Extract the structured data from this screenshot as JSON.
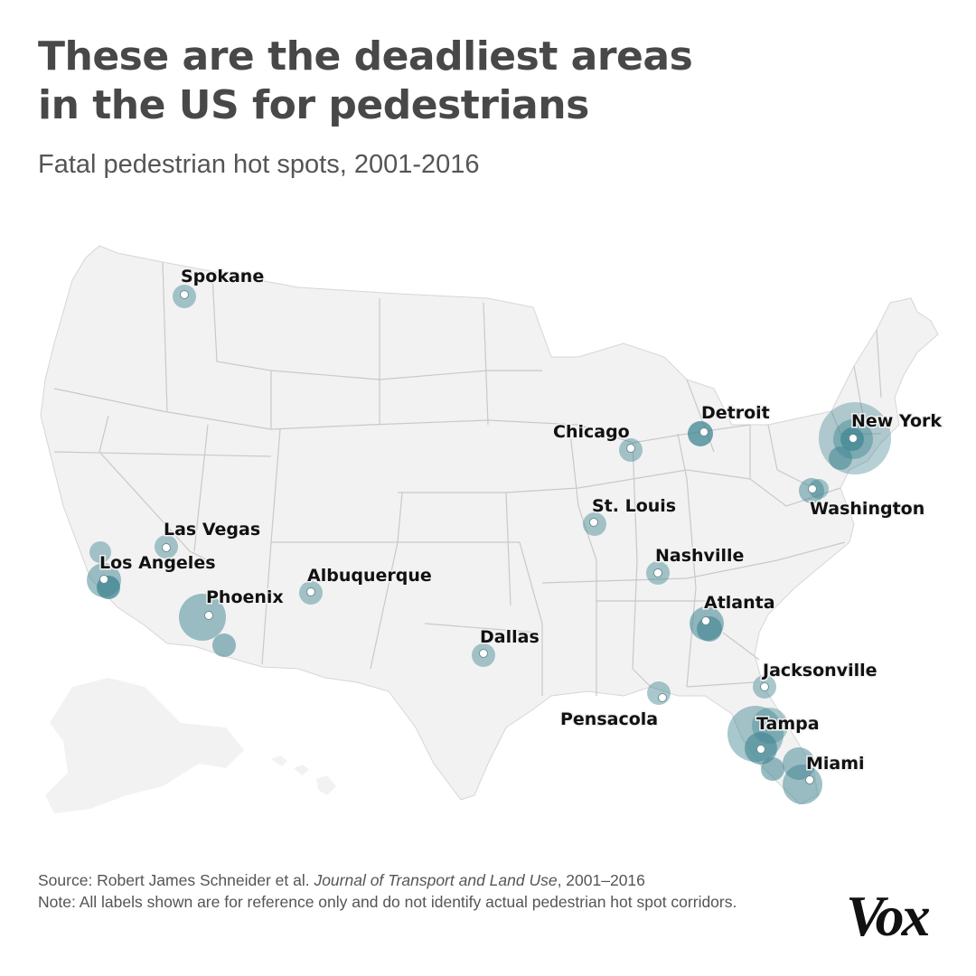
{
  "title_line1": "These are the deadliest areas",
  "title_line2": "in the US for pedestrians",
  "subtitle": "Fatal pedestrian hot spots, 2001-2016",
  "colors": {
    "map_fill": "#f2f2f2",
    "border": "#c9c9c9",
    "bubble": "#3f8491",
    "label": "#111111"
  },
  "map": {
    "cities": [
      {
        "name": "Spokane",
        "intensity": 1
      },
      {
        "name": "Chicago",
        "intensity": 1
      },
      {
        "name": "Detroit",
        "intensity": 2
      },
      {
        "name": "New York",
        "intensity": 4
      },
      {
        "name": "Washington",
        "intensity": 1
      },
      {
        "name": "St. Louis",
        "intensity": 1
      },
      {
        "name": "Las Vegas",
        "intensity": 1
      },
      {
        "name": "Los Angeles",
        "intensity": 2
      },
      {
        "name": "Albuquerque",
        "intensity": 1
      },
      {
        "name": "Phoenix",
        "intensity": 2
      },
      {
        "name": "Nashville",
        "intensity": 1
      },
      {
        "name": "Atlanta",
        "intensity": 2
      },
      {
        "name": "Dallas",
        "intensity": 1
      },
      {
        "name": "Jacksonville",
        "intensity": 1
      },
      {
        "name": "Pensacola",
        "intensity": 1
      },
      {
        "name": "Tampa",
        "intensity": 3
      },
      {
        "name": "Miami",
        "intensity": 2
      }
    ]
  },
  "footer": {
    "source_prefix": "Source: Robert James Schneider et al. ",
    "source_journal": "Journal of Transport and Land Use",
    "source_suffix": ", 2001–2016",
    "note": "Note: All labels shown are for reference only and do not identify actual pedestrian hot spot corridors."
  },
  "logo": "Vox"
}
